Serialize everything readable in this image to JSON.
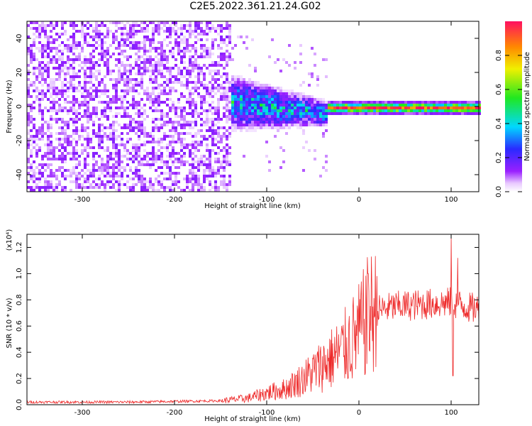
{
  "title": "C2E5.2022.361.21.24.G02",
  "colors": {
    "snr_line": "#ee2a2a",
    "spec_low": "#b040ff",
    "spec_mid": "#2a2aff",
    "spec_hi": "#ff2030",
    "axis": "#000000"
  },
  "chart_data": [
    {
      "type": "heatmap",
      "title": "",
      "xlabel": "Height of straight line (km)",
      "ylabel": "Frequency (Hz)",
      "xlim": [
        -360,
        130
      ],
      "ylim": [
        -50,
        50
      ],
      "x_ticks": [
        "-300",
        "-200",
        "-100",
        "0",
        "100"
      ],
      "y_ticks": [
        "-40",
        "-20",
        "0",
        "20",
        "40"
      ],
      "colorbar": {
        "label": "Normalized spectral amplitude",
        "range": [
          0.0,
          1.0
        ],
        "ticks": [
          "0.0",
          "0.2",
          "0.4",
          "0.6",
          "0.8"
        ],
        "colormap": "rainbow (white→purple→blue→cyan→green→yellow→red)"
      },
      "bands": [
        {
          "x_from": -360,
          "x_to": -140,
          "freq_spread": 50,
          "amplitude": 0.05,
          "pattern": "noise"
        },
        {
          "x_from": -140,
          "x_to": -35,
          "freq_spread": 12,
          "amplitude": 0.35,
          "pattern": "broadening"
        },
        {
          "x_from": -35,
          "x_to": 130,
          "freq_spread": 2,
          "amplitude": 0.9,
          "pattern": "narrow carrier"
        }
      ]
    },
    {
      "type": "line",
      "title": "",
      "xlabel": "Height of straight line (km)",
      "ylabel": "SNR (10 * v/v)",
      "scale_label": "(x10⁴)",
      "xlim": [
        -360,
        130
      ],
      "ylim": [
        0,
        1.3
      ],
      "x_ticks": [
        "-300",
        "-200",
        "-100",
        "0",
        "100"
      ],
      "y_ticks": [
        "0.0",
        "0.2",
        "0.4",
        "0.6",
        "0.8",
        "1.0",
        "1.2"
      ],
      "series": [
        {
          "x": [
            -360,
            -300,
            -250,
            -200,
            -150,
            -120,
            -100,
            -80,
            -60,
            -40,
            -20,
            0,
            10,
            20,
            40,
            60,
            80,
            100,
            110,
            120,
            130
          ],
          "values": [
            0.02,
            0.02,
            0.02,
            0.025,
            0.03,
            0.05,
            0.09,
            0.12,
            0.2,
            0.3,
            0.4,
            0.55,
            0.68,
            0.72,
            0.75,
            0.76,
            0.77,
            0.78,
            0.76,
            0.74,
            0.73
          ],
          "spikes": [
            [
              10,
              1.0
            ],
            [
              100,
              1.28
            ],
            [
              102,
              0.22
            ],
            [
              107,
              1.12
            ]
          ]
        }
      ]
    }
  ]
}
